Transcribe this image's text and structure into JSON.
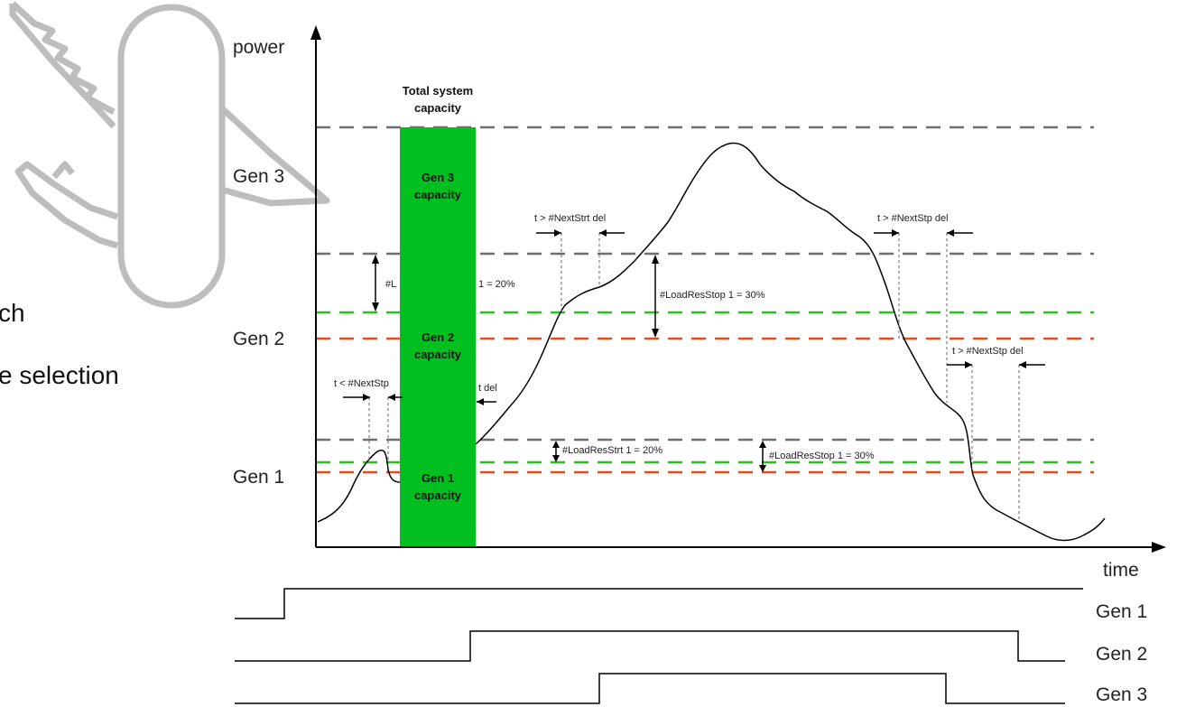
{
  "background_text": {
    "line1": "ch",
    "line2": "e selection"
  },
  "axes": {
    "y_label": "power",
    "x_label": "time",
    "y_ticks": [
      "Gen 3",
      "Gen 2",
      "Gen 1"
    ]
  },
  "capacity_bar": {
    "title": "Total system capacity",
    "title_line1": "Total system",
    "title_line2": "capacity",
    "gen3_line1": "Gen 3",
    "gen3_line2": "capacity",
    "gen2_line1": "Gen 2",
    "gen2_line2": "capacity",
    "gen1_line1": "Gen 1",
    "gen1_line2": "capacity",
    "color": "#00bf1e"
  },
  "annotations": {
    "next_strt_del_top": "t > #NextStrt  del",
    "next_stp_del_top": "t > #NextStp  del",
    "next_stp_del_mid": "t > #NextStp  del",
    "next_stp_lt": "t < #NextStp",
    "del_fragment": "t  del",
    "load_res_strt_top": "#L",
    "load_res_strt_top_val": "1 = 20%",
    "load_res_stop_top": "#LoadResStop  1 = 30%",
    "load_res_strt_low": "#LoadResStrt  1 = 20%",
    "load_res_stop_low": "#LoadResStop  1 = 30%"
  },
  "signals": {
    "gen1": "Gen 1",
    "gen2": "Gen 2",
    "gen3": "Gen 3"
  },
  "colors": {
    "gray_dash": "#6e6e6e",
    "green_dash": "#27c21e",
    "red_dash": "#e84a1a",
    "icon_gray": "#bdbdbd"
  },
  "icons": {
    "background_logo": "swiss-knife-icon"
  }
}
